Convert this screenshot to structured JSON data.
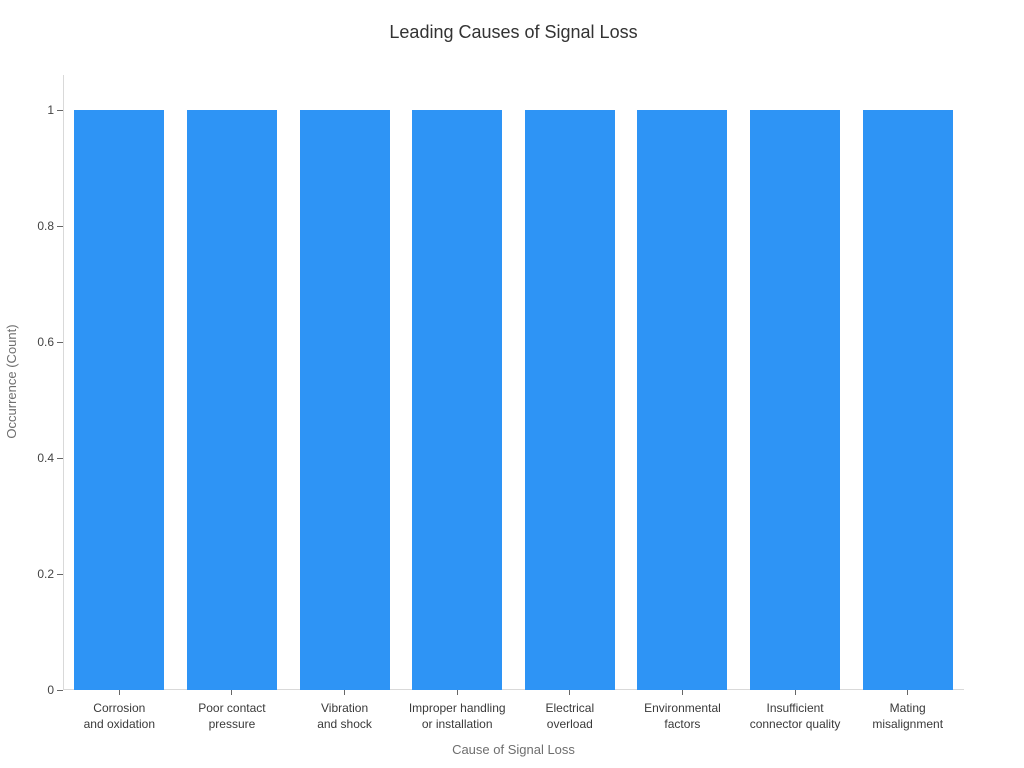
{
  "chart_data": {
    "type": "bar",
    "title": "Leading Causes of Signal Loss",
    "xlabel": "Cause of Signal Loss",
    "ylabel": "Occurrence (Count)",
    "categories": [
      "Corrosion and oxidation",
      "Poor contact pressure",
      "Vibration and shock",
      "Improper handling or installation",
      "Electrical overload",
      "Environmental factors",
      "Insufficient connector quality",
      "Mating misalignment"
    ],
    "category_lines": [
      [
        "Corrosion",
        "and oxidation"
      ],
      [
        "Poor contact",
        "pressure"
      ],
      [
        "Vibration",
        "and shock"
      ],
      [
        "Improper handling",
        "or installation"
      ],
      [
        "Electrical",
        "overload"
      ],
      [
        "Environmental",
        "factors"
      ],
      [
        "Insufficient",
        "connector quality"
      ],
      [
        "Mating",
        "misalignment"
      ]
    ],
    "values": [
      1,
      1,
      1,
      1,
      1,
      1,
      1,
      1
    ],
    "y_ticks": [
      0,
      0.2,
      0.4,
      0.6,
      0.8,
      1
    ],
    "y_tick_labels": [
      "0",
      "0.2",
      "0.4",
      "0.6",
      "0.8",
      "1"
    ],
    "ylim": [
      0,
      1.06
    ],
    "bar_color": "#2E94F5",
    "grid": false,
    "legend_position": "none",
    "background_color": "#ffffff"
  }
}
